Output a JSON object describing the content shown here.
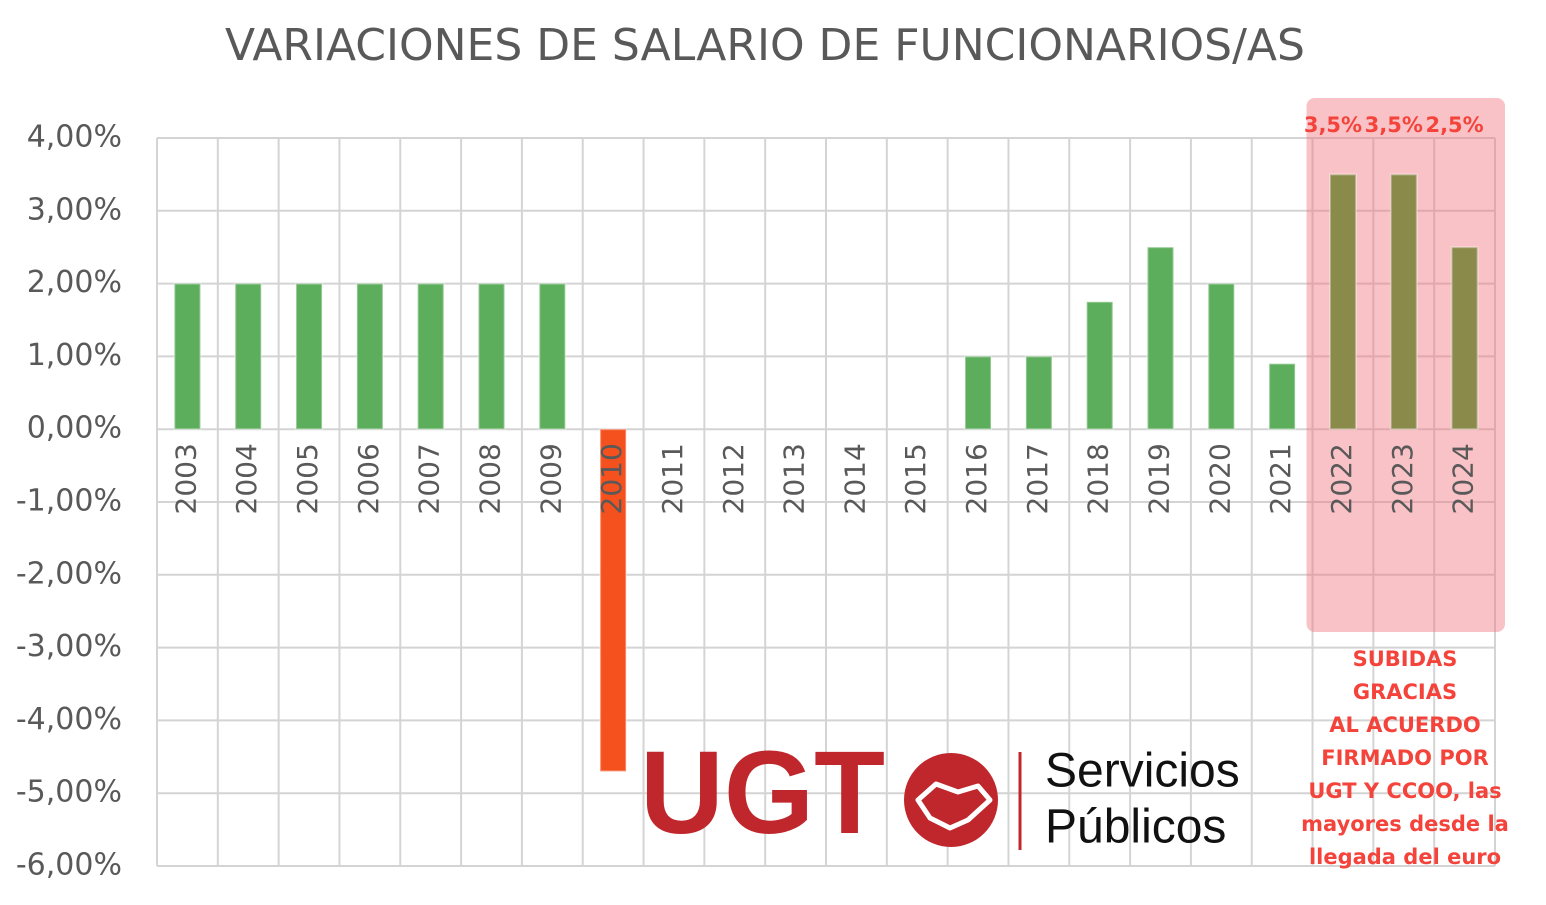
{
  "chart_data": {
    "type": "bar",
    "title": "VARIACIONES DE SALARIO DE FUNCIONARIOS/AS",
    "categories": [
      "2003",
      "2004",
      "2005",
      "2006",
      "2007",
      "2008",
      "2009",
      "2010",
      "2011",
      "2012",
      "2013",
      "2014",
      "2015",
      "2016",
      "2017",
      "2018",
      "2019",
      "2020",
      "2021",
      "2022",
      "2023",
      "2024"
    ],
    "values": [
      2,
      2,
      2,
      2,
      2,
      2,
      2,
      -4.7,
      0,
      0,
      0,
      0,
      0,
      1,
      1,
      1.75,
      2.5,
      2,
      0.9,
      3.5,
      3.5,
      2.5
    ],
    "value_labels": [
      null,
      null,
      null,
      null,
      null,
      null,
      null,
      null,
      null,
      null,
      null,
      null,
      null,
      null,
      null,
      null,
      null,
      null,
      null,
      "3,5%",
      "3,5%",
      "2,5%"
    ],
    "colors": [
      "#5cad5c",
      "#5cad5c",
      "#5cad5c",
      "#5cad5c",
      "#5cad5c",
      "#5cad5c",
      "#5cad5c",
      "#f4511e",
      "#5cad5c",
      "#5cad5c",
      "#5cad5c",
      "#5cad5c",
      "#5cad5c",
      "#5cad5c",
      "#5cad5c",
      "#5cad5c",
      "#5cad5c",
      "#5cad5c",
      "#5cad5c",
      "#8a8a4a",
      "#8a8a4a",
      "#8a8a4a"
    ],
    "ylim": [
      -6,
      4
    ],
    "yticks": [
      {
        "value": -6,
        "label": "-6,00%"
      },
      {
        "value": -5,
        "label": "-5,00%"
      },
      {
        "value": -4,
        "label": "-4,00%"
      },
      {
        "value": -3,
        "label": "-3,00%"
      },
      {
        "value": -2,
        "label": "-2,00%"
      },
      {
        "value": -1,
        "label": "-1,00%"
      },
      {
        "value": 0,
        "label": "0,00%"
      },
      {
        "value": 1,
        "label": "1,00%"
      },
      {
        "value": 2,
        "label": "2,00%"
      },
      {
        "value": 3,
        "label": "3,00%"
      },
      {
        "value": 4,
        "label": "4,00%"
      }
    ],
    "grid": true,
    "annotation": [
      "SUBIDAS",
      "GRACIAS",
      "AL ACUERDO",
      "FIRMADO POR",
      "UGT Y CCOO, las",
      "mayores desde la",
      "llegada del euro"
    ],
    "logo": {
      "brand": "UGT",
      "line1": "Servicios",
      "line2": "Públicos"
    }
  }
}
